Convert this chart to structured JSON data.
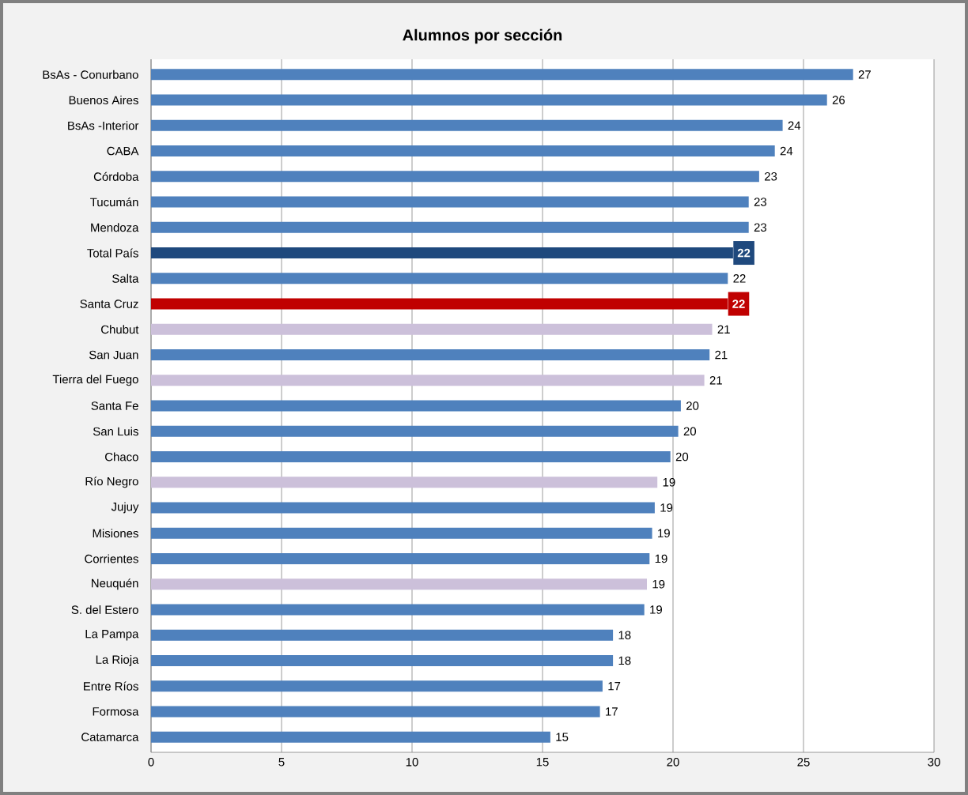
{
  "chart_data": {
    "type": "bar",
    "orientation": "horizontal",
    "title": "Alumnos por sección",
    "categories": [
      "BsAs - Conurbano",
      "Buenos Aires",
      "BsAs -Interior",
      "CABA",
      "Córdoba",
      "Tucumán",
      "Mendoza",
      "Total País",
      "Salta",
      "Santa Cruz",
      "Chubut",
      "San Juan",
      "Tierra del Fuego",
      "Santa Fe",
      "San Luis",
      "Chaco",
      "Río Negro",
      "Jujuy",
      "Misiones",
      "Corrientes",
      "Neuquén",
      "S. del Estero",
      "La Pampa",
      "La Rioja",
      "Entre Ríos",
      "Formosa",
      "Catamarca"
    ],
    "values": [
      26.9,
      25.9,
      24.2,
      23.9,
      23.3,
      22.9,
      22.9,
      22.3,
      22.1,
      22.1,
      21.5,
      21.4,
      21.2,
      20.3,
      20.2,
      19.9,
      19.4,
      19.3,
      19.2,
      19.1,
      19.0,
      18.9,
      17.7,
      17.7,
      17.3,
      17.2,
      15.3
    ],
    "value_labels": [
      "27",
      "26",
      "24",
      "24",
      "23",
      "23",
      "23",
      "22",
      "22",
      "22",
      "21",
      "21",
      "21",
      "20",
      "20",
      "20",
      "19",
      "19",
      "19",
      "19",
      "19",
      "19",
      "18",
      "18",
      "17",
      "17",
      "15"
    ],
    "colors": [
      "#4f81bd",
      "#4f81bd",
      "#4f81bd",
      "#4f81bd",
      "#4f81bd",
      "#4f81bd",
      "#4f81bd",
      "#1f497d",
      "#4f81bd",
      "#c00000",
      "#ccc0da",
      "#4f81bd",
      "#ccc0da",
      "#4f81bd",
      "#4f81bd",
      "#4f81bd",
      "#ccc0da",
      "#4f81bd",
      "#4f81bd",
      "#4f81bd",
      "#ccc0da",
      "#4f81bd",
      "#4f81bd",
      "#4f81bd",
      "#4f81bd",
      "#4f81bd",
      "#4f81bd"
    ],
    "xlim": [
      0,
      30
    ],
    "xticks": [
      0,
      5,
      10,
      15,
      20,
      25,
      30
    ],
    "grid": "x"
  }
}
